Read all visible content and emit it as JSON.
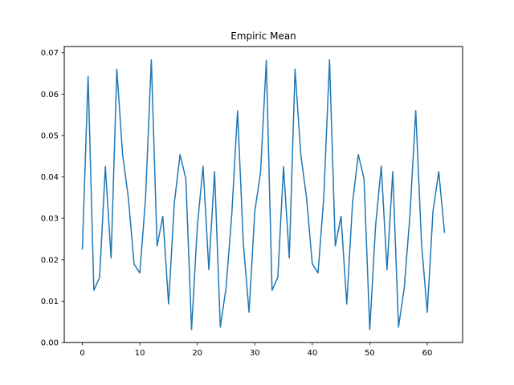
{
  "chart_data": {
    "type": "line",
    "title": "Empiric Mean",
    "xlabel": "",
    "ylabel": "",
    "xlim": [
      -3.15,
      66.15
    ],
    "ylim": [
      0.0,
      0.0715
    ],
    "x_ticks": [
      0,
      10,
      20,
      30,
      40,
      50,
      60
    ],
    "x_tick_labels": [
      "0",
      "10",
      "20",
      "30",
      "40",
      "50",
      "60"
    ],
    "y_ticks": [
      0.0,
      0.01,
      0.02,
      0.03,
      0.04,
      0.05,
      0.06,
      0.07
    ],
    "y_tick_labels": [
      "0.00",
      "0.01",
      "0.02",
      "0.03",
      "0.04",
      "0.05",
      "0.06",
      "0.07"
    ],
    "grid": false,
    "series": [
      {
        "color": "#1f77b4",
        "x": [
          0,
          1,
          2,
          3,
          4,
          5,
          6,
          7,
          8,
          9,
          10,
          11,
          12,
          13,
          14,
          15,
          16,
          17,
          18,
          19,
          20,
          21,
          22,
          23,
          24,
          25,
          26,
          27,
          28,
          29,
          30,
          31,
          32,
          33,
          34,
          35,
          36,
          37,
          38,
          39,
          40,
          41,
          42,
          43,
          44,
          45,
          46,
          47,
          48,
          49,
          50,
          51,
          52,
          53,
          54,
          55,
          56,
          57,
          58,
          59,
          60,
          61,
          62,
          63
        ],
        "values": [
          0.0226,
          0.0643,
          0.0126,
          0.0157,
          0.0425,
          0.0204,
          0.066,
          0.0454,
          0.035,
          0.0189,
          0.0168,
          0.035,
          0.0683,
          0.0233,
          0.0305,
          0.0093,
          0.0337,
          0.0454,
          0.0396,
          0.0031,
          0.028,
          0.0426,
          0.0176,
          0.0413,
          0.0037,
          0.0132,
          0.031,
          0.056,
          0.024,
          0.0073,
          0.0317,
          0.041,
          0.0681,
          0.0126,
          0.0157,
          0.0425,
          0.0204,
          0.066,
          0.0454,
          0.035,
          0.019,
          0.0168,
          0.035,
          0.0683,
          0.0233,
          0.0305,
          0.0093,
          0.0337,
          0.0454,
          0.0396,
          0.0031,
          0.028,
          0.0426,
          0.0176,
          0.0413,
          0.0037,
          0.0132,
          0.031,
          0.056,
          0.024,
          0.0073,
          0.0317,
          0.0413,
          0.0266
        ]
      }
    ]
  }
}
